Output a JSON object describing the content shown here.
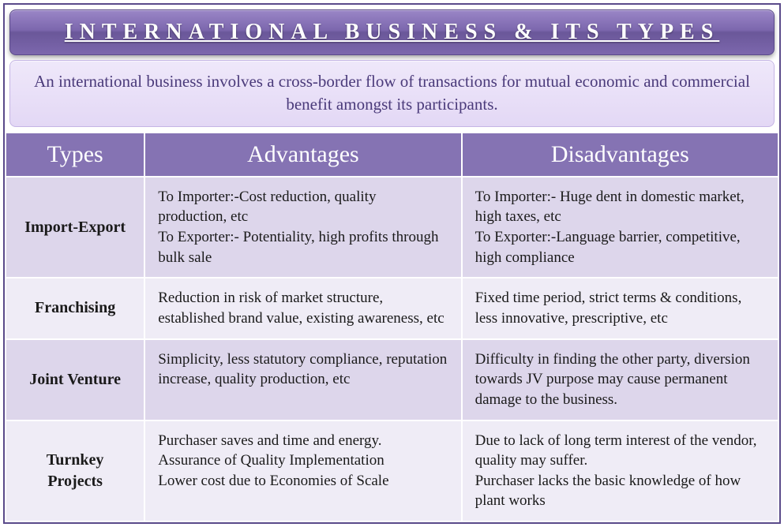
{
  "title": "INTERNATIONAL BUSINESS & ITS TYPES",
  "definition": "An international business involves a cross-border flow of transactions for mutual economic and commercial benefit amongst its participants.",
  "columns": [
    "Types",
    "Advantages",
    "Disadvantages"
  ],
  "rows": [
    {
      "type": "Import-Export",
      "advantages": "To Importer:-Cost reduction, quality production, etc\nTo Exporter:- Potentiality, high profits through bulk sale",
      "disadvantages": "To Importer:- Huge dent in domestic market, high taxes, etc\nTo Exporter:-Language barrier, competitive, high compliance"
    },
    {
      "type": "Franchising",
      "advantages": "Reduction in risk of market structure, established brand value, existing awareness, etc",
      "disadvantages": "Fixed time period, strict terms & conditions, less innovative, prescriptive, etc"
    },
    {
      "type": "Joint Venture",
      "advantages": "Simplicity, less statutory compliance, reputation increase, quality production, etc",
      "disadvantages": "Difficulty in finding the other party, diversion towards JV purpose may cause permanent damage to the business."
    },
    {
      "type": "Turnkey Projects",
      "advantages": "Purchaser saves and time and energy.\nAssurance of Quality Implementation\nLower cost due to Economies of Scale",
      "disadvantages": "Due to lack of long term interest of the vendor, quality may suffer.\nPurchaser lacks the basic knowledge of how plant works"
    }
  ],
  "colors": {
    "header_bg": "#8573b3",
    "row_odd_bg": "#ddd6eb",
    "row_even_bg": "#efecf6",
    "title_text": "#ffffff",
    "definition_text": "#4a3a7a"
  }
}
